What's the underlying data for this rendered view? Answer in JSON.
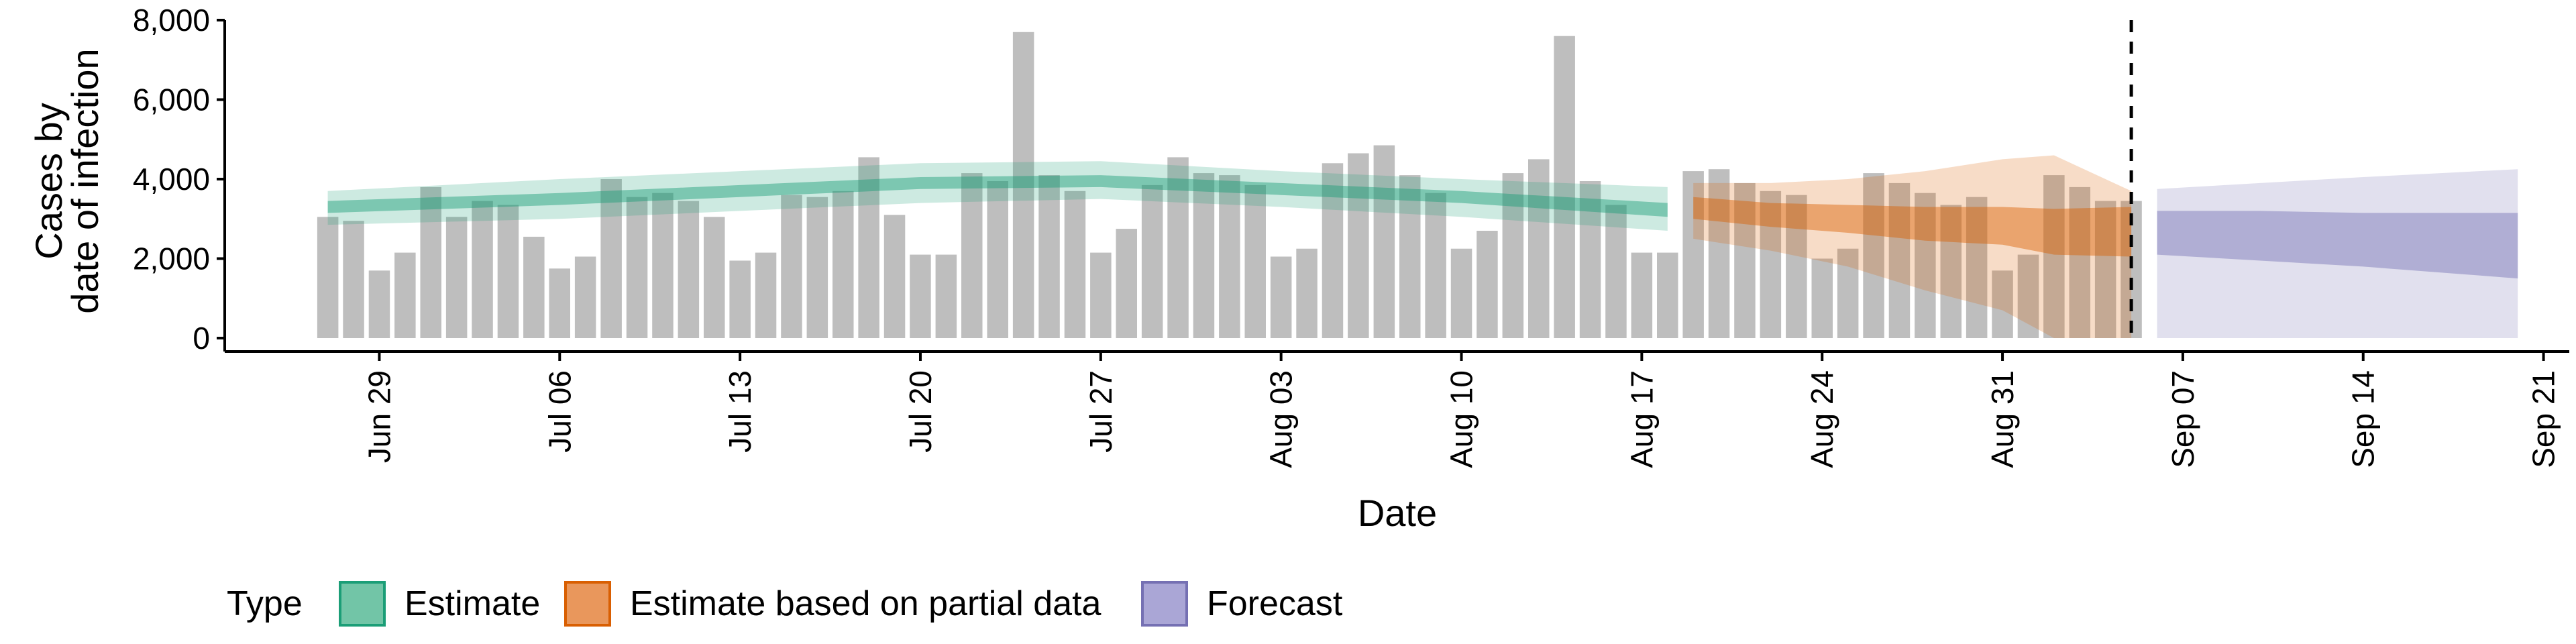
{
  "chart_data": {
    "type": "bar",
    "xlabel": "Date",
    "ylabel_lines": [
      "Cases by",
      "date of infection"
    ],
    "ylim": [
      0,
      8000
    ],
    "y_ticks": [
      0,
      2000,
      4000,
      6000,
      8000
    ],
    "y_tick_labels": [
      "0",
      "2,000",
      "4,000",
      "6,000",
      "8,000"
    ],
    "x_tick_labels": [
      "Jun 29",
      "Jul 06",
      "Jul 13",
      "Jul 20",
      "Jul 27",
      "Aug 03",
      "Aug 10",
      "Aug 17",
      "Aug 24",
      "Aug 31",
      "Sep 07",
      "Sep 14",
      "Sep 21"
    ],
    "x_tick_dates": [
      "2020-06-29",
      "2020-07-06",
      "2020-07-13",
      "2020-07-20",
      "2020-07-27",
      "2020-08-03",
      "2020-08-10",
      "2020-08-17",
      "2020-08-24",
      "2020-08-31",
      "2020-09-07",
      "2020-09-14",
      "2020-09-21"
    ],
    "x_range": [
      "2020-06-23",
      "2020-09-22"
    ],
    "forecast_start_date": "2020-09-05",
    "bars": {
      "color": "#bebebe",
      "dates": [
        "2020-06-27",
        "2020-06-28",
        "2020-06-29",
        "2020-06-30",
        "2020-07-01",
        "2020-07-02",
        "2020-07-03",
        "2020-07-04",
        "2020-07-05",
        "2020-07-06",
        "2020-07-07",
        "2020-07-08",
        "2020-07-09",
        "2020-07-10",
        "2020-07-11",
        "2020-07-12",
        "2020-07-13",
        "2020-07-14",
        "2020-07-15",
        "2020-07-16",
        "2020-07-17",
        "2020-07-18",
        "2020-07-19",
        "2020-07-20",
        "2020-07-21",
        "2020-07-22",
        "2020-07-23",
        "2020-07-24",
        "2020-07-25",
        "2020-07-26",
        "2020-07-27",
        "2020-07-28",
        "2020-07-29",
        "2020-07-30",
        "2020-07-31",
        "2020-08-01",
        "2020-08-02",
        "2020-08-03",
        "2020-08-04",
        "2020-08-05",
        "2020-08-06",
        "2020-08-07",
        "2020-08-08",
        "2020-08-09",
        "2020-08-10",
        "2020-08-11",
        "2020-08-12",
        "2020-08-13",
        "2020-08-14",
        "2020-08-15",
        "2020-08-16",
        "2020-08-17",
        "2020-08-18",
        "2020-08-19",
        "2020-08-20",
        "2020-08-21",
        "2020-08-22",
        "2020-08-23",
        "2020-08-24",
        "2020-08-25",
        "2020-08-26",
        "2020-08-27",
        "2020-08-28",
        "2020-08-29",
        "2020-08-30",
        "2020-08-31",
        "2020-09-01",
        "2020-09-02",
        "2020-09-03",
        "2020-09-04",
        "2020-09-05"
      ],
      "values": [
        3050,
        2950,
        1700,
        2150,
        3800,
        3050,
        3450,
        3350,
        2550,
        1750,
        2050,
        4000,
        3550,
        3650,
        3450,
        3050,
        1950,
        2150,
        3600,
        3550,
        3700,
        4550,
        3100,
        2100,
        2100,
        4150,
        3950,
        7700,
        4100,
        3700,
        2150,
        2750,
        3850,
        4550,
        4150,
        4100,
        3850,
        2050,
        2250,
        4400,
        4650,
        4850,
        4100,
        3650,
        2250,
        2700,
        4150,
        4500,
        7600,
        3950,
        3350,
        2150,
        2150,
        4200,
        4250,
        3900,
        3700,
        3600,
        2000,
        2250,
        4150,
        3900,
        3650,
        3350,
        3550,
        1700,
        2100,
        4100,
        3800,
        3450,
        3450
      ]
    },
    "series": [
      {
        "name": "Estimate",
        "color": "#1b9e77",
        "dates": [
          "2020-06-27",
          "2020-07-06",
          "2020-07-13",
          "2020-07-20",
          "2020-07-27",
          "2020-08-03",
          "2020-08-10",
          "2020-08-18"
        ],
        "median": [
          3300,
          3500,
          3700,
          3900,
          3950,
          3750,
          3550,
          3250
        ],
        "inner": [
          [
            3150,
            3450
          ],
          [
            3350,
            3650
          ],
          [
            3550,
            3850
          ],
          [
            3750,
            4050
          ],
          [
            3800,
            4100
          ],
          [
            3600,
            3900
          ],
          [
            3400,
            3700
          ],
          [
            3050,
            3400
          ]
        ],
        "outer": [
          [
            2850,
            3700
          ],
          [
            3000,
            4000
          ],
          [
            3200,
            4200
          ],
          [
            3400,
            4400
          ],
          [
            3500,
            4450
          ],
          [
            3300,
            4200
          ],
          [
            3050,
            4000
          ],
          [
            2700,
            3800
          ]
        ]
      },
      {
        "name": "Estimate based on partial data",
        "color": "#d95f02",
        "dates": [
          "2020-08-19",
          "2020-08-22",
          "2020-08-25",
          "2020-08-28",
          "2020-08-31",
          "2020-09-02",
          "2020-09-05"
        ],
        "median": [
          3250,
          3100,
          3000,
          2900,
          2800,
          2700,
          2650
        ],
        "inner": [
          [
            3000,
            3550
          ],
          [
            2800,
            3400
          ],
          [
            2650,
            3350
          ],
          [
            2450,
            3300
          ],
          [
            2350,
            3300
          ],
          [
            2100,
            3250
          ],
          [
            2050,
            3300
          ]
        ],
        "outer": [
          [
            2500,
            3900
          ],
          [
            2200,
            3900
          ],
          [
            1800,
            4000
          ],
          [
            1200,
            4200
          ],
          [
            700,
            4500
          ],
          [
            0,
            4600
          ],
          [
            0,
            3700
          ]
        ]
      },
      {
        "name": "Forecast",
        "color": "#7570b3",
        "dates": [
          "2020-09-06",
          "2020-09-10",
          "2020-09-14",
          "2020-09-17",
          "2020-09-20"
        ],
        "median": [
          2650,
          2600,
          2450,
          2350,
          2300
        ],
        "inner": [
          [
            2100,
            3200
          ],
          [
            1950,
            3200
          ],
          [
            1800,
            3150
          ],
          [
            1650,
            3150
          ],
          [
            1500,
            3150
          ]
        ],
        "outer": [
          [
            0,
            3750
          ],
          [
            0,
            3900
          ],
          [
            0,
            4050
          ],
          [
            0,
            4150
          ],
          [
            0,
            4250
          ]
        ]
      }
    ],
    "legend": {
      "title": "Type",
      "position": "bottom",
      "items": [
        {
          "label": "Estimate",
          "fill": "#72c5a7",
          "stroke": "#1b9e77"
        },
        {
          "label": "Estimate based on partial data",
          "fill": "#e9975c",
          "stroke": "#d95f02"
        },
        {
          "label": "Forecast",
          "fill": "#aaa6d6",
          "stroke": "#7570b3"
        }
      ]
    }
  }
}
